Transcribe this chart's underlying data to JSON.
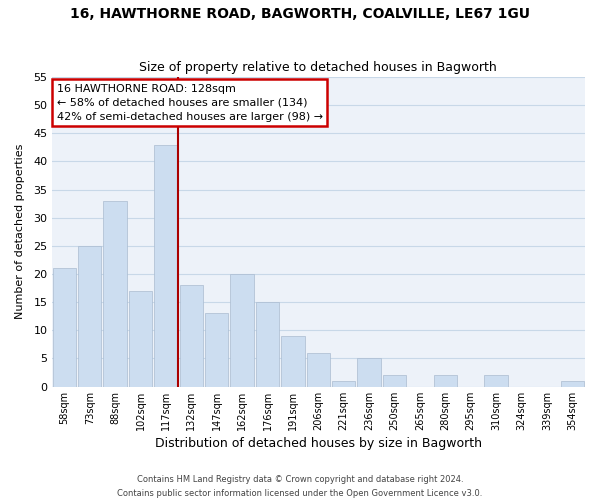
{
  "title": "16, HAWTHORNE ROAD, BAGWORTH, COALVILLE, LE67 1GU",
  "subtitle": "Size of property relative to detached houses in Bagworth",
  "xlabel": "Distribution of detached houses by size in Bagworth",
  "ylabel": "Number of detached properties",
  "bin_labels": [
    "58sqm",
    "73sqm",
    "88sqm",
    "102sqm",
    "117sqm",
    "132sqm",
    "147sqm",
    "162sqm",
    "176sqm",
    "191sqm",
    "206sqm",
    "221sqm",
    "236sqm",
    "250sqm",
    "265sqm",
    "280sqm",
    "295sqm",
    "310sqm",
    "324sqm",
    "339sqm",
    "354sqm"
  ],
  "bar_values": [
    21,
    25,
    33,
    17,
    43,
    18,
    13,
    20,
    15,
    9,
    6,
    1,
    5,
    2,
    0,
    2,
    0,
    2,
    0,
    0,
    1
  ],
  "bar_color": "#ccddf0",
  "red_line_color": "#aa0000",
  "ylim": [
    0,
    55
  ],
  "yticks": [
    0,
    5,
    10,
    15,
    20,
    25,
    30,
    35,
    40,
    45,
    50,
    55
  ],
  "annotation_title": "16 HAWTHORNE ROAD: 128sqm",
  "annotation_line1": "← 58% of detached houses are smaller (134)",
  "annotation_line2": "42% of semi-detached houses are larger (98) →",
  "annotation_box_color": "#ffffff",
  "annotation_box_edge": "#cc0000",
  "footer_line1": "Contains HM Land Registry data © Crown copyright and database right 2024.",
  "footer_line2": "Contains public sector information licensed under the Open Government Licence v3.0.",
  "grid_color": "#c8d8e8",
  "background_color": "#edf2f9"
}
